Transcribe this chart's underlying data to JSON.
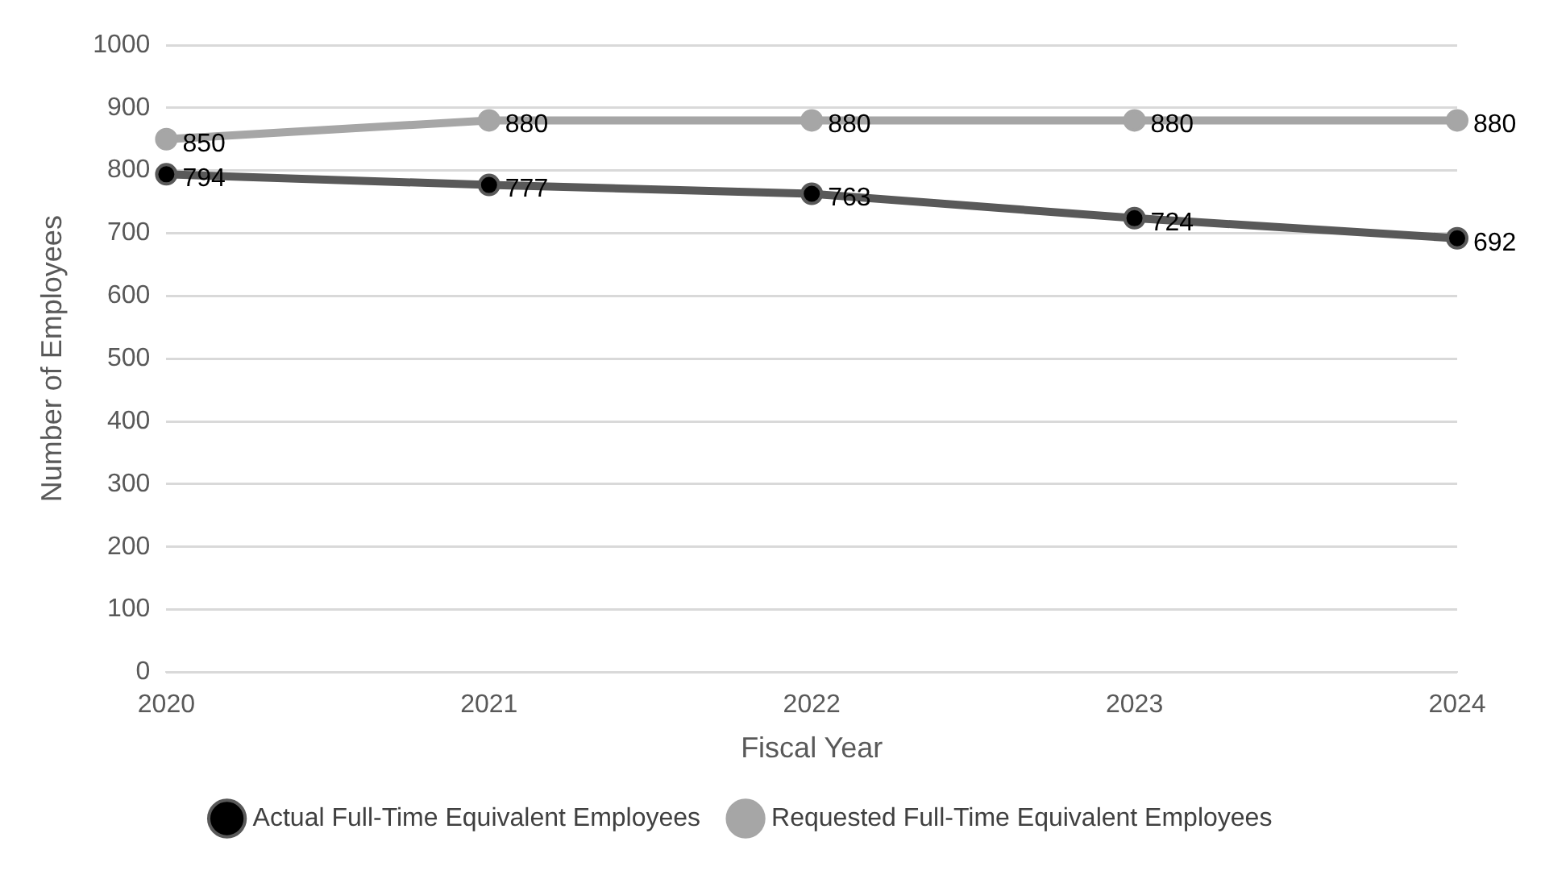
{
  "chart_data": {
    "type": "line",
    "xlabel": "Fiscal Year",
    "ylabel": "Number of Employees",
    "categories": [
      "2020",
      "2021",
      "2022",
      "2023",
      "2024"
    ],
    "series": [
      {
        "name": "Actual Full-Time Equivalent Employees",
        "color": "#595959",
        "values": [
          794,
          777,
          763,
          724,
          692
        ]
      },
      {
        "name": "Requested Full-Time Equivalent Employees",
        "color": "#a6a6a6",
        "values": [
          850,
          880,
          880,
          880,
          880
        ]
      }
    ],
    "ylim": [
      0,
      1000
    ],
    "yticks": [
      0,
      100,
      200,
      300,
      400,
      500,
      600,
      700,
      800,
      900,
      1000
    ],
    "grid": "y",
    "legend": "bottom",
    "marker": "circle",
    "line_style": "solid",
    "data_labels": true
  }
}
